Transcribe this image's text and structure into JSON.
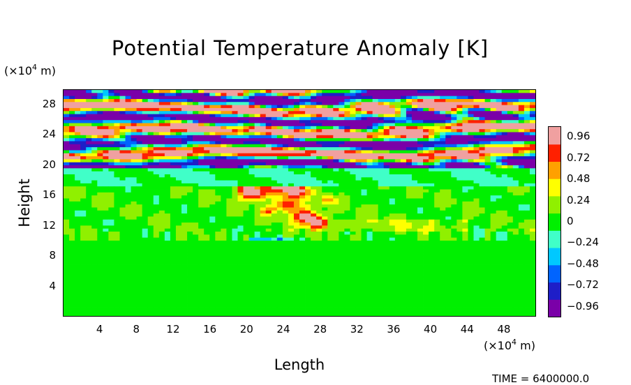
{
  "chart_data": {
    "type": "heatmap",
    "title": "Potential Temperature Anomaly [K]",
    "xlabel": "Length",
    "ylabel": "Height",
    "x_unit_prefix": "(×10",
    "x_unit_exp": "4",
    "x_unit_suffix": " m)",
    "y_unit_prefix": "(×10",
    "y_unit_exp": "4",
    "y_unit_suffix": " m)",
    "xlim": [
      0,
      51.5
    ],
    "ylim": [
      0,
      30
    ],
    "x_ticks": [
      4,
      8,
      12,
      16,
      20,
      24,
      28,
      32,
      36,
      40,
      44,
      48
    ],
    "y_ticks": [
      4,
      8,
      12,
      16,
      20,
      24,
      28
    ],
    "colorbar": {
      "min": -1.08,
      "max": 1.08,
      "ticks": [
        "0.96",
        "0.72",
        "0.48",
        "0.24",
        "0",
        "−0.24",
        "−0.48",
        "−0.72",
        "−0.96"
      ],
      "colors": [
        "#7a00a8",
        "#1e1ec8",
        "#0064ff",
        "#00c8ff",
        "#40ffc8",
        "#00f000",
        "#90f000",
        "#ffff00",
        "#ffa000",
        "#ff2000",
        "#f0a0a0"
      ]
    },
    "regions": [
      {
        "zone": "z >= 19.5",
        "value": "strong alternating layers, about ±1"
      },
      {
        "zone": "17 < z < 19.5",
        "value": "about -0.1"
      },
      {
        "zone": "10 < z < 17",
        "value": "near 0, with a 0.7–1 plume near x 20–28"
      },
      {
        "zone": "z <= 10",
        "value": "about 0"
      }
    ]
  },
  "footer": {
    "time_text": "TIME = 6400000.0"
  }
}
